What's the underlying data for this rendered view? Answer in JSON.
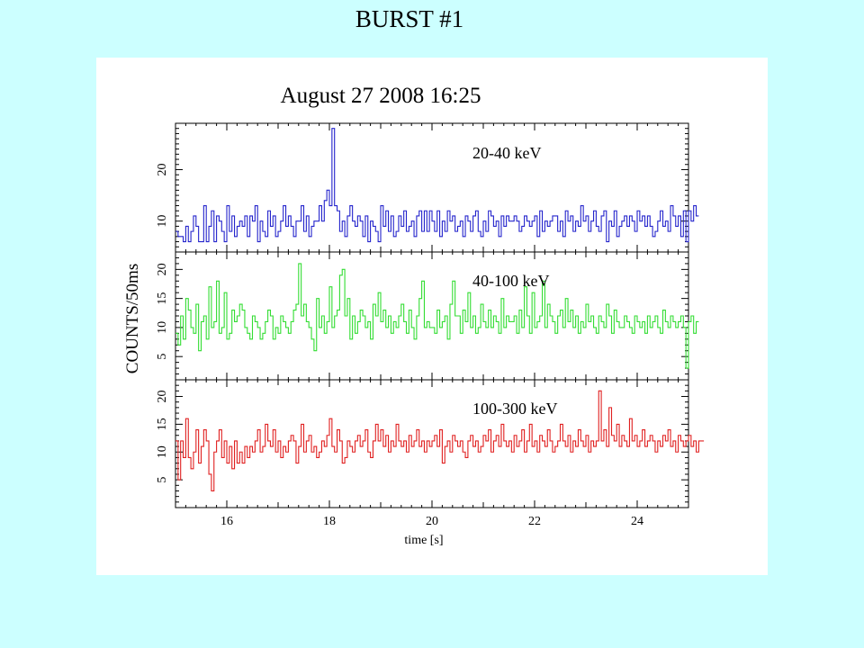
{
  "slide": {
    "title": "BURST #1"
  },
  "chart_data": {
    "type": "line",
    "title": "August 27 2008 16:25",
    "xlabel": "time [s]",
    "ylabel": "COUNTS/50ms",
    "xlim": [
      15.0,
      25.0
    ],
    "x_ticks": [
      16,
      18,
      20,
      22,
      24
    ],
    "bin_width_s": 0.05,
    "grid": false,
    "panels": [
      {
        "name": "20-40 keV",
        "color": "#2424cc",
        "ylim": [
          4,
          29
        ],
        "y_ticks": [
          10,
          20
        ],
        "values": [
          8,
          7,
          7,
          6,
          9,
          6,
          8,
          11,
          9,
          6,
          6,
          13,
          6,
          9,
          12,
          6,
          11,
          10,
          8,
          6,
          13,
          8,
          11,
          7,
          9,
          10,
          9,
          11,
          7,
          11,
          10,
          13,
          6,
          10,
          8,
          7,
          12,
          9,
          11,
          7,
          8,
          10,
          13,
          9,
          11,
          9,
          7,
          10,
          10,
          13,
          8,
          11,
          7,
          9,
          10,
          10,
          13,
          10,
          14,
          16,
          13,
          28,
          13,
          12,
          8,
          10,
          7,
          11,
          13,
          10,
          9,
          11,
          10,
          7,
          11,
          6,
          10,
          9,
          8,
          6,
          13,
          9,
          12,
          8,
          11,
          7,
          8,
          11,
          9,
          12,
          8,
          9,
          10,
          7,
          11,
          12,
          8,
          12,
          8,
          12,
          10,
          8,
          12,
          7,
          10,
          8,
          12,
          10,
          11,
          8,
          9,
          10,
          7,
          11,
          10,
          8,
          11,
          12,
          8,
          7,
          10,
          8,
          12,
          11,
          9,
          10,
          7,
          11,
          9,
          11,
          10,
          10,
          11,
          10,
          8,
          9,
          11,
          10,
          9,
          10,
          11,
          7,
          12,
          8,
          10,
          9,
          10,
          11,
          11,
          8,
          10,
          7,
          12,
          10,
          11,
          8,
          10,
          9,
          13,
          10,
          11,
          8,
          10,
          12,
          9,
          8,
          11,
          12,
          6,
          10,
          9,
          12,
          7,
          9,
          10,
          11,
          9,
          11,
          10,
          8,
          12,
          10,
          11,
          9,
          11,
          9,
          7,
          8,
          10,
          12,
          9,
          10,
          8,
          13,
          11,
          9,
          11,
          7,
          12,
          6,
          12,
          10,
          13,
          11
        ]
      },
      {
        "name": "40-100 keV",
        "color": "#33dd33",
        "ylim": [
          1,
          23
        ],
        "y_ticks": [
          5,
          10,
          15,
          20
        ],
        "values": [
          9,
          7,
          12,
          8,
          15,
          13,
          10,
          9,
          14,
          6,
          11,
          12,
          8,
          17,
          10,
          11,
          18,
          9,
          10,
          16,
          8,
          9,
          13,
          11,
          12,
          14,
          13,
          10,
          9,
          8,
          12,
          11,
          10,
          8,
          9,
          11,
          13,
          12,
          8,
          10,
          9,
          12,
          11,
          10,
          9,
          11,
          13,
          14,
          21,
          12,
          14,
          11,
          10,
          8,
          6,
          15,
          10,
          12,
          9,
          11,
          17,
          10,
          12,
          13,
          19,
          20,
          12,
          15,
          8,
          12,
          9,
          11,
          13,
          12,
          10,
          11,
          8,
          14,
          12,
          16,
          11,
          13,
          10,
          12,
          9,
          11,
          10,
          12,
          14,
          11,
          9,
          13,
          10,
          8,
          12,
          15,
          18,
          10,
          11,
          10,
          10,
          9,
          13,
          10,
          11,
          12,
          8,
          14,
          18,
          12,
          12,
          9,
          13,
          11,
          16,
          10,
          12,
          9,
          10,
          14,
          11,
          10,
          13,
          10,
          12,
          11,
          9,
          15,
          10,
          12,
          11,
          11,
          12,
          9,
          13,
          10,
          17,
          12,
          9,
          16,
          10,
          11,
          12,
          18,
          10,
          14,
          12,
          11,
          9,
          12,
          13,
          10,
          15,
          11,
          13,
          10,
          12,
          9,
          11,
          10,
          14,
          11,
          12,
          10,
          9,
          12,
          11,
          10,
          14,
          12,
          9,
          13,
          11,
          10,
          10,
          12,
          11,
          10,
          9,
          12,
          11,
          10,
          11,
          9,
          12,
          10,
          11,
          12,
          10,
          9,
          13,
          11,
          10,
          12,
          11,
          10,
          11,
          12,
          10,
          3,
          11,
          12,
          9,
          11
        ]
      },
      {
        "name": "100-300 keV",
        "color": "#e02020",
        "ylim": [
          0,
          23
        ],
        "y_ticks": [
          5,
          10,
          15,
          20
        ],
        "values": [
          12,
          5,
          12,
          9,
          16,
          9,
          7,
          10,
          14,
          8,
          11,
          14,
          12,
          6,
          3,
          10,
          12,
          14,
          9,
          12,
          8,
          11,
          7,
          12,
          8,
          10,
          8,
          11,
          9,
          11,
          10,
          12,
          14,
          10,
          11,
          15,
          12,
          11,
          14,
          10,
          12,
          9,
          11,
          10,
          12,
          13,
          12,
          8,
          11,
          15,
          10,
          12,
          13,
          10,
          11,
          9,
          10,
          12,
          11,
          13,
          16,
          11,
          10,
          14,
          12,
          8,
          9,
          12,
          11,
          10,
          12,
          13,
          11,
          12,
          14,
          10,
          9,
          12,
          15,
          12,
          14,
          11,
          13,
          10,
          12,
          11,
          15,
          12,
          11,
          12,
          10,
          13,
          11,
          12,
          14,
          11,
          12,
          10,
          12,
          11,
          12,
          13,
          11,
          14,
          8,
          11,
          12,
          10,
          13,
          12,
          11,
          12,
          10,
          9,
          12,
          13,
          11,
          12,
          10,
          11,
          13,
          12,
          14,
          10,
          12,
          13,
          11,
          15,
          12,
          11,
          12,
          10,
          13,
          11,
          12,
          14,
          10,
          12,
          15,
          11,
          12,
          10,
          13,
          12,
          11,
          14,
          12,
          10,
          11,
          12,
          15,
          12,
          11,
          13,
          10,
          12,
          11,
          14,
          12,
          11,
          13,
          10,
          12,
          11,
          12,
          21,
          12,
          14,
          11,
          18,
          13,
          12,
          15,
          11,
          13,
          12,
          11,
          16,
          12,
          13,
          11,
          12,
          14,
          11,
          12,
          13,
          12,
          10,
          12,
          11,
          13,
          12,
          14,
          11,
          12,
          10,
          13,
          12,
          11,
          12,
          13,
          11,
          12,
          10,
          12,
          12
        ]
      }
    ]
  }
}
